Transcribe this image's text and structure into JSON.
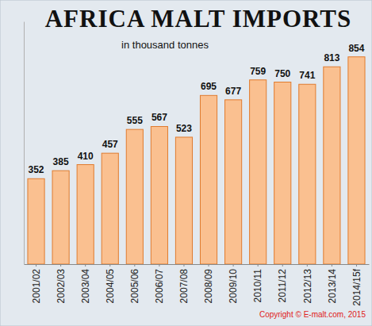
{
  "chart_data": {
    "type": "bar",
    "title": "AFRICA MALT IMPORTS",
    "subtitle": "in thousand tonnes",
    "annotations": [
      "Copyright © E-malt.com, 2015"
    ],
    "categories": [
      "2001/02",
      "2002/03",
      "2003/04",
      "2004/05",
      "2005/06",
      "2006/07",
      "2007/08",
      "2008/09",
      "2009/10",
      "2010/11",
      "2011/12",
      "2012/13",
      "2013/14",
      "2014/15f"
    ],
    "values": [
      352,
      385,
      410,
      457,
      555,
      567,
      523,
      695,
      677,
      759,
      750,
      741,
      813,
      854
    ],
    "color": "#fac090",
    "ylim": [
      0,
      1000
    ],
    "grid": false,
    "data_labels": true,
    "tick_labels": "x"
  }
}
